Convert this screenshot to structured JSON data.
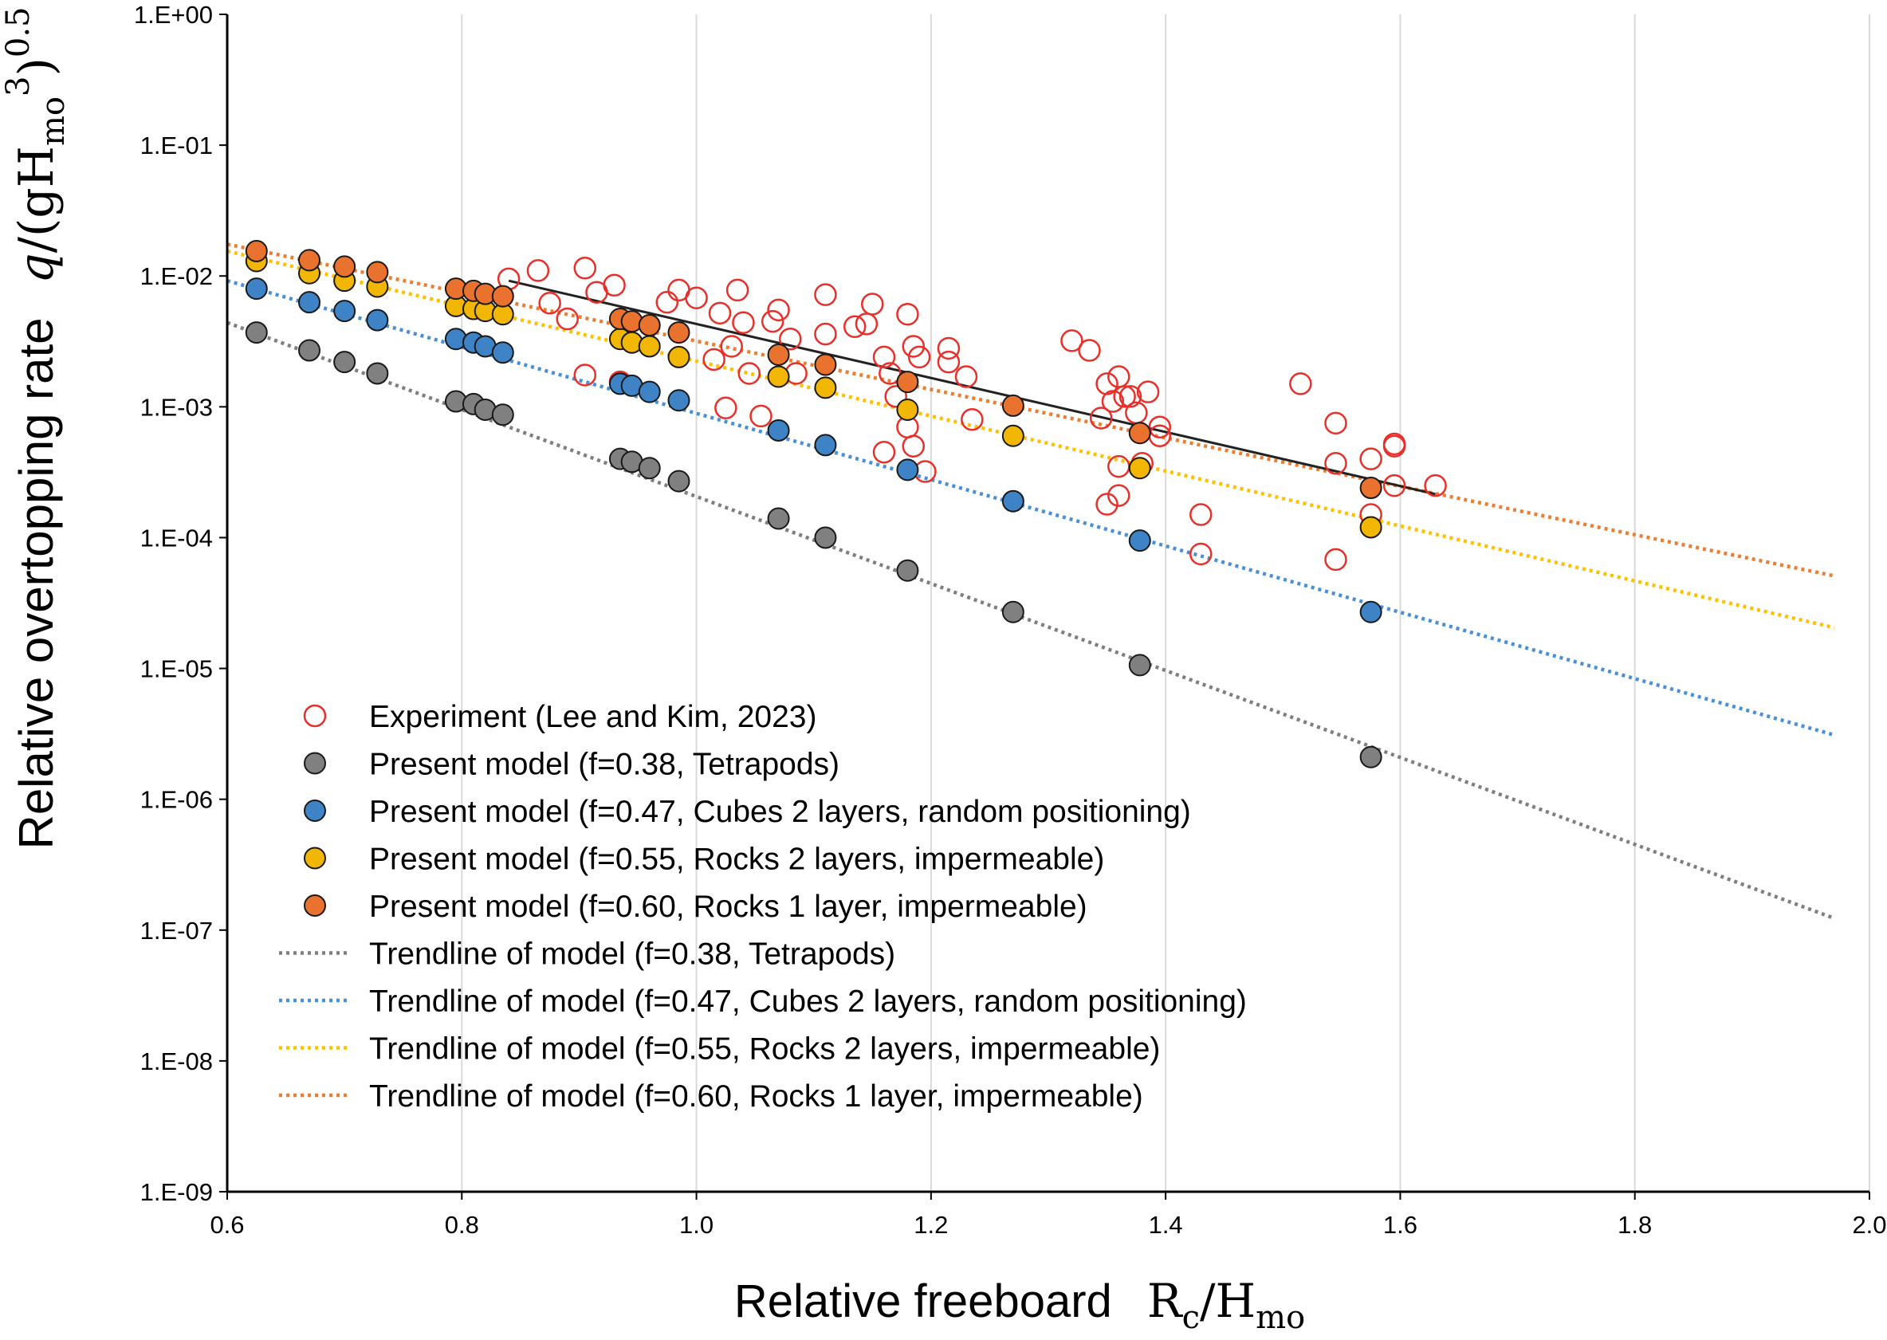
{
  "chart_data": {
    "type": "scatter",
    "x_axis": {
      "label": "Relative freeboard",
      "label_math": {
        "base1": "R",
        "sub1": "c",
        "slash": "/",
        "base2": "H",
        "sub2": "mo"
      },
      "range": [
        0.6,
        2.0
      ],
      "ticks": [
        0.6,
        0.8,
        1.0,
        1.2,
        1.4,
        1.6,
        1.8,
        2.0
      ],
      "tick_labels": [
        "0.6",
        "0.8",
        "1.0",
        "1.2",
        "1.4",
        "1.6",
        "1.8",
        "2.0"
      ]
    },
    "y_axis": {
      "label": "Relative overtopping rate",
      "label_math": {
        "q": "q",
        "slash": "/",
        "open": "(gH",
        "sub": "mo",
        "sup": "3",
        "close": ")",
        "exp": "0.5"
      },
      "scale": "log",
      "range": [
        1e-09,
        1
      ],
      "ticks": [
        1e-09,
        1e-08,
        1e-07,
        1e-06,
        1e-05,
        0.0001,
        0.001,
        0.01,
        0.1,
        1
      ],
      "tick_labels": [
        "1.E-09",
        "1.E-08",
        "1.E-07",
        "1.E-06",
        "1.E-05",
        "1.E-04",
        "1.E-03",
        "1.E-02",
        "1.E-01",
        "1.E+00"
      ]
    },
    "grid": "vertical",
    "legend_position": "lower-left",
    "series": [
      {
        "name": "Experiment (Lee and Kim, 2023)",
        "kind": "marker-open",
        "color": "#e8302a",
        "points": [
          [
            0.84,
            0.0095
          ],
          [
            0.865,
            0.011
          ],
          [
            0.875,
            0.0062
          ],
          [
            0.89,
            0.0047
          ],
          [
            0.905,
            0.0115
          ],
          [
            0.915,
            0.0075
          ],
          [
            0.93,
            0.0085
          ],
          [
            0.905,
            0.00175
          ],
          [
            0.935,
            0.00155
          ],
          [
            0.955,
            0.0035
          ],
          [
            0.975,
            0.0063
          ],
          [
            0.985,
            0.0078
          ],
          [
            1.0,
            0.0068
          ],
          [
            1.02,
            0.0052
          ],
          [
            1.035,
            0.0078
          ],
          [
            1.04,
            0.0044
          ],
          [
            1.015,
            0.0023
          ],
          [
            1.03,
            0.0029
          ],
          [
            1.045,
            0.0018
          ],
          [
            1.025,
            0.00098
          ],
          [
            1.055,
            0.00085
          ],
          [
            1.065,
            0.0045
          ],
          [
            1.07,
            0.0055
          ],
          [
            1.08,
            0.0033
          ],
          [
            1.085,
            0.0018
          ],
          [
            1.11,
            0.0072
          ],
          [
            1.11,
            0.0036
          ],
          [
            1.135,
            0.0041
          ],
          [
            1.15,
            0.0061
          ],
          [
            1.145,
            0.0043
          ],
          [
            1.16,
            0.0024
          ],
          [
            1.165,
            0.0018
          ],
          [
            1.17,
            0.0012
          ],
          [
            1.16,
            0.00045
          ],
          [
            1.18,
            0.0051
          ],
          [
            1.185,
            0.0029
          ],
          [
            1.19,
            0.0024
          ],
          [
            1.18,
            0.0007
          ],
          [
            1.185,
            0.0005
          ],
          [
            1.195,
            0.00032
          ],
          [
            1.215,
            0.0028
          ],
          [
            1.215,
            0.0022
          ],
          [
            1.23,
            0.0017
          ],
          [
            1.235,
            0.0008
          ],
          [
            1.32,
            0.0032
          ],
          [
            1.335,
            0.0027
          ],
          [
            1.35,
            0.0015
          ],
          [
            1.36,
            0.0017
          ],
          [
            1.365,
            0.0012
          ],
          [
            1.355,
            0.0011
          ],
          [
            1.345,
            0.00082
          ],
          [
            1.37,
            0.0012
          ],
          [
            1.385,
            0.0013
          ],
          [
            1.375,
            0.0009
          ],
          [
            1.395,
            0.0007
          ],
          [
            1.395,
            0.0006
          ],
          [
            1.36,
            0.00035
          ],
          [
            1.36,
            0.00021
          ],
          [
            1.35,
            0.00018
          ],
          [
            1.38,
            0.00037
          ],
          [
            1.43,
            0.00015
          ],
          [
            1.43,
            7.5e-05
          ],
          [
            1.515,
            0.0015
          ],
          [
            1.545,
            0.00075
          ],
          [
            1.545,
            0.00037
          ],
          [
            1.545,
            6.8e-05
          ],
          [
            1.575,
            0.0004
          ],
          [
            1.575,
            0.00015
          ],
          [
            1.595,
            0.00052
          ],
          [
            1.595,
            0.0005
          ],
          [
            1.595,
            0.00025
          ],
          [
            1.63,
            0.00025
          ]
        ]
      },
      {
        "name": "Present model (f=0.38, Tetrapods)",
        "kind": "marker",
        "color": "#808080",
        "points": [
          [
            0.625,
            0.0037
          ],
          [
            0.67,
            0.0027
          ],
          [
            0.7,
            0.0022
          ],
          [
            0.728,
            0.0018
          ],
          [
            0.795,
            0.0011
          ],
          [
            0.81,
            0.00105
          ],
          [
            0.82,
            0.00095
          ],
          [
            0.835,
            0.00087
          ],
          [
            0.935,
            0.0004
          ],
          [
            0.945,
            0.00038
          ],
          [
            0.96,
            0.00034
          ],
          [
            0.985,
            0.00027
          ],
          [
            1.07,
            0.00014
          ],
          [
            1.11,
            0.0001
          ],
          [
            1.18,
            5.6e-05
          ],
          [
            1.27,
            2.7e-05
          ],
          [
            1.378,
            1.06e-05
          ],
          [
            1.575,
            2.1e-06
          ]
        ]
      },
      {
        "name": "Present model (f=0.47, Cubes 2 layers, random positioning)",
        "kind": "marker",
        "color": "#3f83c7",
        "points": [
          [
            0.625,
            0.008
          ],
          [
            0.67,
            0.0063
          ],
          [
            0.7,
            0.0054
          ],
          [
            0.728,
            0.0046
          ],
          [
            0.795,
            0.0033
          ],
          [
            0.81,
            0.0031
          ],
          [
            0.82,
            0.0029
          ],
          [
            0.835,
            0.0026
          ],
          [
            0.935,
            0.0015
          ],
          [
            0.945,
            0.00145
          ],
          [
            0.96,
            0.0013
          ],
          [
            0.985,
            0.00112
          ],
          [
            1.07,
            0.00066
          ],
          [
            1.11,
            0.00051
          ],
          [
            1.18,
            0.00033
          ],
          [
            1.27,
            0.00019
          ],
          [
            1.378,
            9.5e-05
          ],
          [
            1.575,
            2.7e-05
          ]
        ]
      },
      {
        "name": "Present model (f=0.55, Rocks 2 layers, impermeable)",
        "kind": "marker",
        "color": "#f2b705",
        "points": [
          [
            0.625,
            0.013
          ],
          [
            0.67,
            0.0105
          ],
          [
            0.7,
            0.0092
          ],
          [
            0.728,
            0.0083
          ],
          [
            0.795,
            0.0059
          ],
          [
            0.81,
            0.0056
          ],
          [
            0.82,
            0.0054
          ],
          [
            0.835,
            0.0051
          ],
          [
            0.935,
            0.0033
          ],
          [
            0.945,
            0.0031
          ],
          [
            0.96,
            0.0029
          ],
          [
            0.985,
            0.0024
          ],
          [
            1.07,
            0.0017
          ],
          [
            1.11,
            0.0014
          ],
          [
            1.18,
            0.00095
          ],
          [
            1.27,
            0.0006
          ],
          [
            1.378,
            0.00034
          ],
          [
            1.575,
            0.00012
          ]
        ]
      },
      {
        "name": "Present model (f=0.60, Rocks 1 layer, impermeable)",
        "kind": "marker",
        "color": "#e9722e",
        "points": [
          [
            0.625,
            0.0155
          ],
          [
            0.67,
            0.0132
          ],
          [
            0.7,
            0.0118
          ],
          [
            0.728,
            0.0107
          ],
          [
            0.795,
            0.008
          ],
          [
            0.81,
            0.0077
          ],
          [
            0.82,
            0.0073
          ],
          [
            0.835,
            0.007
          ],
          [
            0.935,
            0.0047
          ],
          [
            0.945,
            0.0045
          ],
          [
            0.96,
            0.0042
          ],
          [
            0.985,
            0.0037
          ],
          [
            1.07,
            0.0025
          ],
          [
            1.11,
            0.0021
          ],
          [
            1.18,
            0.00155
          ],
          [
            1.27,
            0.00102
          ],
          [
            1.378,
            0.00063
          ],
          [
            1.575,
            0.00024
          ]
        ]
      },
      {
        "name": "Trendline of model (f=0.38, Tetrapods)",
        "kind": "trend",
        "color": "#7f7f7f",
        "points": [
          [
            0.6,
            0.0044
          ],
          [
            1.97,
            1.23e-07
          ]
        ]
      },
      {
        "name": "Trendline of model (f=0.47, Cubes 2 layers, random positioning)",
        "kind": "trend",
        "color": "#4a90d9",
        "points": [
          [
            0.6,
            0.0092
          ],
          [
            1.97,
            3.1e-06
          ]
        ]
      },
      {
        "name": "Trendline of model (f=0.55, Rocks 2 layers, impermeable)",
        "kind": "trend",
        "color": "#ffc000",
        "points": [
          [
            0.6,
            0.0155
          ],
          [
            1.97,
            2.05e-05
          ]
        ]
      },
      {
        "name": "Trendline of model (f=0.60, Rocks 1 layer, impermeable)",
        "kind": "trend",
        "color": "#ed7d31",
        "points": [
          [
            0.6,
            0.0175
          ],
          [
            1.97,
            5.1e-05
          ]
        ]
      },
      {
        "kind": "fit",
        "color": "#222222",
        "points": [
          [
            0.84,
            0.0092
          ],
          [
            1.63,
            0.000215
          ]
        ]
      }
    ]
  }
}
